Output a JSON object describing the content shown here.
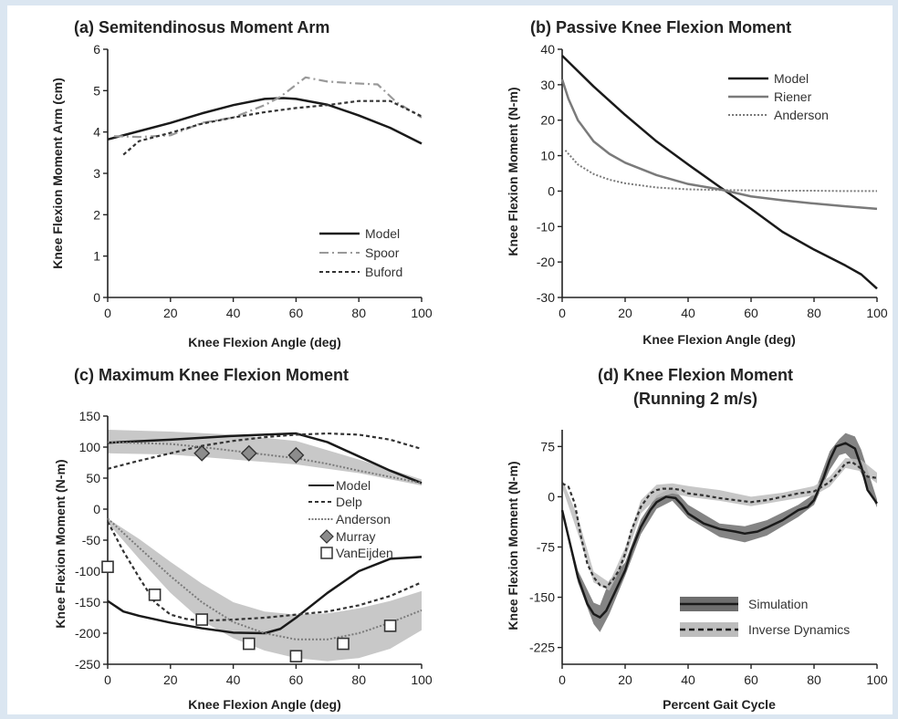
{
  "colors": {
    "page_bg": "#dbe6f1",
    "black": "#1a1a1a",
    "gray": "#7a7a7a",
    "band": "#c8c8c8",
    "dark_band": "#6e6e6e",
    "light_band": "#bdbdbd"
  },
  "chart_data": [
    {
      "type": "line",
      "title": "(a) Semitendinosus Moment Arm",
      "xlabel": "Knee Flexion Angle (deg)",
      "ylabel": "Knee Flexion Moment Arm (cm)",
      "xlim": [
        0,
        100
      ],
      "ylim": [
        0,
        6
      ],
      "xticks": [
        "0",
        "20",
        "40",
        "60",
        "80",
        "100"
      ],
      "yticks": [
        "0",
        "1",
        "2",
        "3",
        "4",
        "5",
        "6"
      ],
      "legend_position": "bottom-right",
      "series": [
        {
          "name": "Model",
          "style": "solid-black",
          "x": [
            0,
            10,
            20,
            30,
            40,
            50,
            56,
            60,
            70,
            80,
            90,
            100
          ],
          "y": [
            3.82,
            4.02,
            4.22,
            4.45,
            4.65,
            4.8,
            4.82,
            4.8,
            4.66,
            4.4,
            4.1,
            3.72
          ]
        },
        {
          "name": "Spoor",
          "style": "dashdot-gray",
          "x": [
            2,
            10,
            20,
            30,
            40,
            50,
            55,
            63,
            70,
            78,
            86,
            92,
            100
          ],
          "y": [
            3.9,
            3.88,
            3.92,
            4.22,
            4.35,
            4.65,
            4.85,
            5.32,
            5.22,
            5.18,
            5.15,
            4.72,
            4.35
          ]
        },
        {
          "name": "Buford",
          "style": "dash-black",
          "x": [
            5,
            10,
            20,
            30,
            40,
            50,
            60,
            70,
            80,
            90,
            100
          ],
          "y": [
            3.45,
            3.78,
            3.98,
            4.2,
            4.35,
            4.48,
            4.58,
            4.65,
            4.75,
            4.75,
            4.38
          ]
        }
      ]
    },
    {
      "type": "line",
      "title": "(b) Passive Knee Flexion Moment",
      "xlabel": "Knee Flexion Angle (deg)",
      "ylabel": "Knee Flexion Moment (N-m)",
      "xlim": [
        0,
        100
      ],
      "ylim": [
        -30,
        40
      ],
      "xticks": [
        "0",
        "20",
        "40",
        "60",
        "80",
        "100"
      ],
      "yticks": [
        "-30",
        "-20",
        "-10",
        "0",
        "10",
        "20",
        "30",
        "40"
      ],
      "legend_position": "top-right",
      "series": [
        {
          "name": "Model",
          "style": "solid-black",
          "x": [
            0,
            10,
            20,
            30,
            40,
            50,
            60,
            70,
            80,
            90,
            95,
            100
          ],
          "y": [
            38.2,
            29.5,
            21.5,
            14,
            7.5,
            1.2,
            -5,
            -11.5,
            -16.5,
            -21,
            -23.5,
            -27.5
          ]
        },
        {
          "name": "Riener",
          "style": "solid-gray",
          "x": [
            0,
            2,
            5,
            10,
            15,
            20,
            30,
            40,
            50,
            60,
            70,
            80,
            90,
            100
          ],
          "y": [
            31.5,
            26,
            20,
            14,
            10.5,
            8,
            4.5,
            2,
            0.5,
            -1.5,
            -2.6,
            -3.5,
            -4.3,
            -5
          ]
        },
        {
          "name": "Anderson",
          "style": "dot-gray",
          "x": [
            1,
            5,
            10,
            15,
            20,
            30,
            40,
            50,
            60,
            70,
            80,
            90,
            100
          ],
          "y": [
            11.5,
            7.5,
            4.8,
            3.2,
            2.2,
            1,
            0.5,
            0.3,
            0.2,
            0.1,
            0.1,
            0,
            0
          ]
        }
      ]
    },
    {
      "type": "line",
      "title": "(c) Maximum Knee Flexion Moment",
      "xlabel": "Knee Flexion Angle (deg)",
      "ylabel": "Knee Flexion Moment (N-m)",
      "xlim": [
        0,
        100
      ],
      "ylim": [
        -250,
        150
      ],
      "xticks": [
        "0",
        "20",
        "40",
        "60",
        "80",
        "100"
      ],
      "yticks": [
        "-250",
        "-200",
        "-150",
        "-100",
        "-50",
        "0",
        "50",
        "100",
        "150"
      ],
      "legend_position": "center-right",
      "series": [
        {
          "name": "Model",
          "style": "solid-black",
          "x": [
            0,
            20,
            40,
            60,
            70,
            80,
            90,
            100
          ],
          "y": [
            107,
            112,
            118,
            122,
            108,
            85,
            62,
            42
          ]
        },
        {
          "name": "Model",
          "style": "solid-black",
          "x": [
            0,
            5,
            10,
            20,
            30,
            40,
            50,
            55,
            60,
            70,
            80,
            90,
            100
          ],
          "y": [
            -148,
            -165,
            -172,
            -183,
            -192,
            -199,
            -200,
            -193,
            -175,
            -135,
            -100,
            -80,
            -77
          ]
        },
        {
          "name": "Delp",
          "style": "dash-black",
          "x": [
            0,
            10,
            20,
            30,
            40,
            50,
            60,
            70,
            80,
            90,
            100
          ],
          "y": [
            65,
            78,
            90,
            102,
            110,
            116,
            120,
            122,
            120,
            112,
            97
          ]
        },
        {
          "name": "Delp",
          "style": "dash-black",
          "x": [
            0,
            5,
            10,
            15,
            20,
            25,
            30,
            40,
            50,
            60,
            70,
            80,
            90,
            100
          ],
          "y": [
            -20,
            -68,
            -110,
            -150,
            -170,
            -177,
            -180,
            -178,
            -175,
            -170,
            -165,
            -155,
            -140,
            -118
          ]
        },
        {
          "name": "Anderson",
          "style": "dot-gray",
          "x": [
            0,
            20,
            30,
            40,
            50,
            60,
            70,
            80,
            90,
            100
          ],
          "y": [
            108,
            105,
            100,
            94,
            88,
            82,
            73,
            62,
            52,
            42
          ]
        },
        {
          "name": "Anderson",
          "style": "dot-gray",
          "x": [
            0,
            10,
            20,
            30,
            40,
            50,
            60,
            70,
            80,
            90,
            100
          ],
          "y": [
            -15,
            -62,
            -108,
            -150,
            -182,
            -200,
            -210,
            -210,
            -200,
            -183,
            -163
          ]
        },
        {
          "name": "Murray",
          "style": "diamond",
          "x": [
            30,
            45,
            60
          ],
          "y": [
            90,
            90,
            87
          ]
        },
        {
          "name": "VanEijden",
          "style": "square",
          "x": [
            0,
            15,
            30,
            45,
            60,
            75,
            90
          ],
          "y": [
            -93,
            -138,
            -178,
            -217,
            -237,
            -217,
            -188
          ]
        }
      ],
      "bands": [
        {
          "x": [
            0,
            20,
            40,
            60,
            80,
            100
          ],
          "lower": [
            90,
            88,
            80,
            72,
            58,
            38
          ],
          "upper": [
            128,
            125,
            120,
            110,
            80,
            48
          ]
        },
        {
          "x": [
            0,
            10,
            20,
            30,
            40,
            50,
            60,
            70,
            80,
            90,
            100
          ],
          "lower": [
            -22,
            -80,
            -135,
            -180,
            -208,
            -228,
            -240,
            -245,
            -240,
            -225,
            -195
          ],
          "upper": [
            -15,
            -48,
            -85,
            -120,
            -150,
            -165,
            -170,
            -168,
            -160,
            -148,
            -132
          ]
        }
      ]
    },
    {
      "type": "line",
      "title": "(d) Knee Flexion Moment",
      "subtitle": "(Running 2 m/s)",
      "xlabel": "Percent Gait Cycle",
      "ylabel": "Knee Flexion Moment (N-m)",
      "xlim": [
        0,
        100
      ],
      "ylim": [
        -250,
        100
      ],
      "xticks": [
        "0",
        "20",
        "40",
        "60",
        "80",
        "100"
      ],
      "yticks": [
        "-225",
        "-150",
        "-75",
        "0",
        "75"
      ],
      "legend_position": "bottom-right",
      "series": [
        {
          "name": "Simulation",
          "style": "solid-black",
          "x": [
            0,
            2,
            5,
            8,
            10,
            12,
            14,
            16,
            18,
            20,
            22,
            25,
            28,
            30,
            33,
            36,
            38,
            40,
            45,
            50,
            55,
            58,
            62,
            65,
            70,
            75,
            78,
            80,
            83,
            85,
            87,
            90,
            93,
            95,
            97,
            100
          ],
          "y": [
            -20,
            -60,
            -120,
            -160,
            -175,
            -180,
            -170,
            -150,
            -130,
            -110,
            -80,
            -45,
            -20,
            -8,
            0,
            -2,
            -12,
            -25,
            -40,
            -48,
            -52,
            -55,
            -52,
            -46,
            -35,
            -20,
            -15,
            -5,
            28,
            55,
            75,
            80,
            72,
            45,
            10,
            -10
          ]
        },
        {
          "name": "Inverse Dynamics",
          "style": "dash-black",
          "x": [
            0,
            2,
            4,
            6,
            8,
            10,
            12,
            14,
            16,
            18,
            20,
            22,
            25,
            28,
            30,
            32,
            35,
            38,
            40,
            45,
            50,
            55,
            60,
            65,
            70,
            75,
            80,
            85,
            88,
            90,
            92,
            95,
            97,
            100
          ],
          "y": [
            20,
            15,
            -10,
            -60,
            -100,
            -120,
            -132,
            -135,
            -125,
            -110,
            -85,
            -50,
            -15,
            5,
            10,
            12,
            12,
            10,
            5,
            2,
            -2,
            -5,
            -8,
            -5,
            0,
            5,
            8,
            22,
            38,
            50,
            52,
            42,
            30,
            28
          ]
        }
      ],
      "bands": [
        {
          "x": [
            0,
            5,
            10,
            12,
            15,
            20,
            25,
            30,
            35,
            40,
            50,
            58,
            65,
            75,
            80,
            85,
            88,
            90,
            93,
            95,
            100
          ],
          "lower": [
            -22,
            -128,
            -190,
            -202,
            -175,
            -118,
            -56,
            -18,
            -6,
            -32,
            -60,
            -68,
            -58,
            -30,
            -12,
            40,
            62,
            65,
            50,
            35,
            -16
          ],
          "upper": [
            -18,
            -110,
            -158,
            -162,
            -125,
            -98,
            -34,
            2,
            14,
            -12,
            -40,
            -44,
            -35,
            -12,
            4,
            68,
            86,
            95,
            90,
            70,
            -4
          ]
        },
        {
          "x": [
            0,
            5,
            10,
            15,
            20,
            25,
            30,
            35,
            40,
            50,
            60,
            70,
            80,
            85,
            90,
            95,
            100
          ],
          "lower": [
            14,
            -55,
            -128,
            -140,
            -94,
            -25,
            -2,
            5,
            0,
            -6,
            -14,
            -6,
            2,
            15,
            43,
            38,
            20
          ],
          "upper": [
            26,
            -30,
            -112,
            -128,
            -76,
            -5,
            18,
            20,
            16,
            10,
            0,
            6,
            16,
            30,
            58,
            55,
            36
          ]
        }
      ]
    }
  ]
}
